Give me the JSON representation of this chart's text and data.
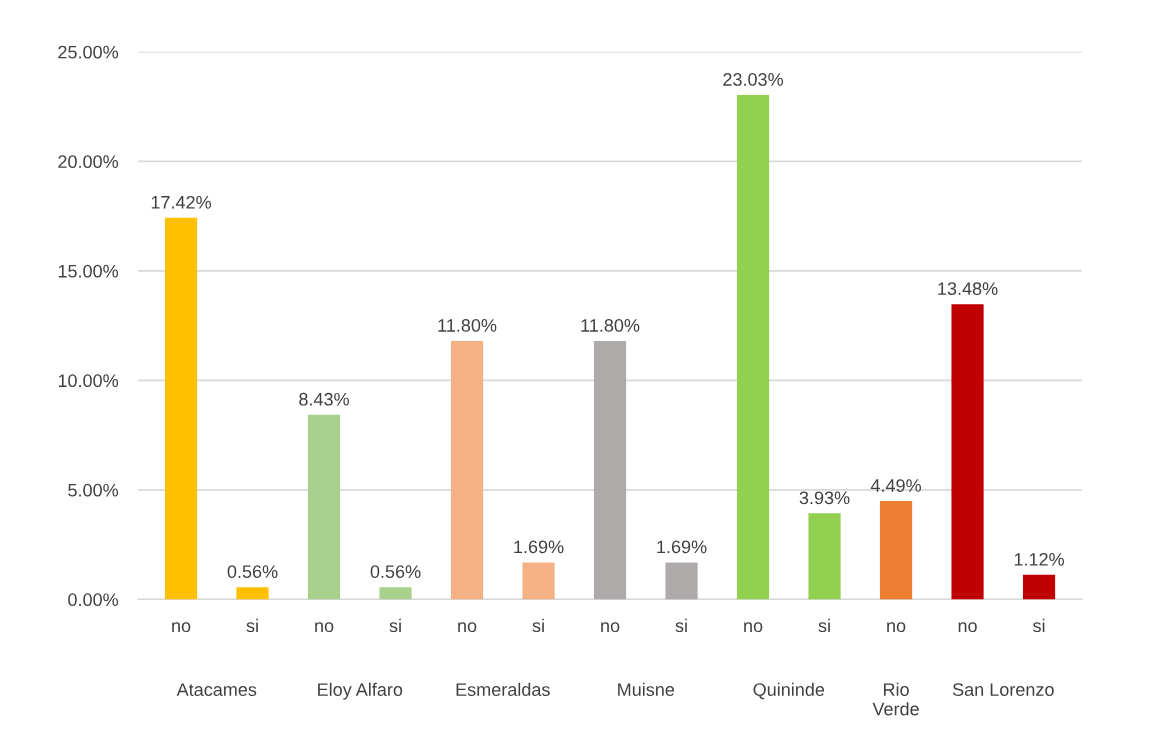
{
  "chart_data": {
    "type": "bar",
    "categories": [
      "no",
      "si",
      "no",
      "si",
      "no",
      "si",
      "no",
      "si",
      "no",
      "si",
      "no",
      "no",
      "si"
    ],
    "values": [
      17.42,
      0.56,
      8.43,
      0.56,
      11.8,
      1.69,
      11.8,
      1.69,
      23.03,
      3.93,
      4.49,
      13.48,
      1.12
    ],
    "value_labels": [
      "17.42%",
      "0.56%",
      "8.43%",
      "0.56%",
      "11.80%",
      "1.69%",
      "11.80%",
      "1.69%",
      "23.03%",
      "3.93%",
      "4.49%",
      "13.48%",
      "1.12%"
    ],
    "colors": [
      "#ffc000",
      "#ffc000",
      "#a9d18e",
      "#a9d18e",
      "#f4b183",
      "#f4b183",
      "#aeaaaa",
      "#aeaaaa",
      "#92d050",
      "#92d050",
      "#ed7d31",
      "#c00000",
      "#c00000"
    ],
    "annotations": [
      "Atacames",
      "Eloy Alfaro",
      "Esmeraldas",
      "Muisne",
      "Quininde",
      "Rio\nVerde",
      "San Lorenzo"
    ],
    "ylim": [
      0,
      25
    ],
    "yticks": [
      {
        "value": 0,
        "label": "0.00%"
      },
      {
        "value": 5,
        "label": "5.00%"
      },
      {
        "value": 10,
        "label": "10.00%"
      },
      {
        "value": 15,
        "label": "15.00%"
      },
      {
        "value": 20,
        "label": "20.00%"
      },
      {
        "value": 25,
        "label": "25.00%"
      }
    ],
    "grid": "y"
  }
}
